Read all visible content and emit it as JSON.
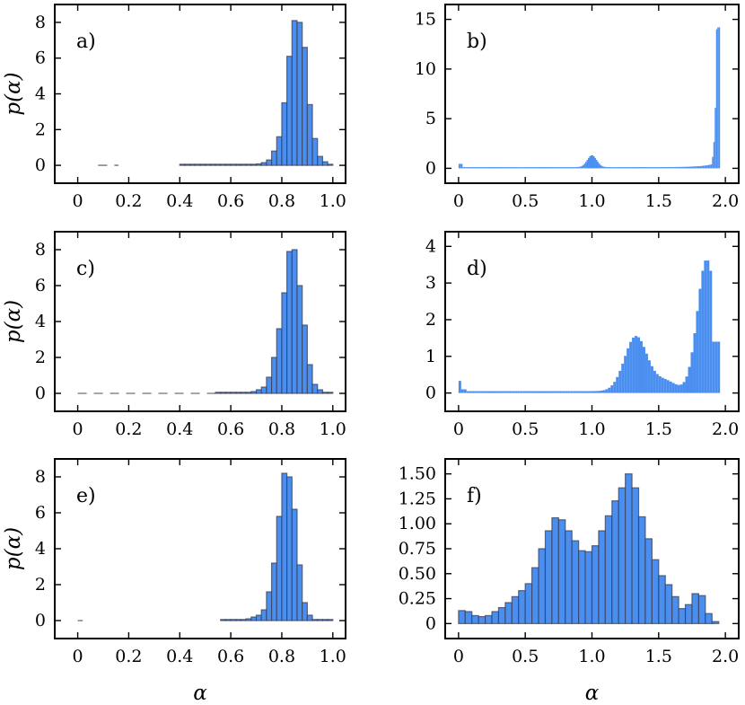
{
  "figure": {
    "ylabel": "p(α)",
    "xlabel": "α"
  },
  "colors": {
    "bar_fill": "#4a8ff0",
    "bar_edge": "#3a3f55",
    "frame": "#000000"
  },
  "chart_data": [
    {
      "type": "histogram",
      "panel_label": "a)",
      "xlim": [
        -0.09,
        1.05
      ],
      "ylim": [
        -1.0,
        9.0
      ],
      "xticks": [
        0,
        0.2,
        0.4,
        0.6,
        0.8,
        1.0
      ],
      "xtick_labels": [
        "0",
        "0.2",
        "0.4",
        "0.6",
        "0.8",
        "1.0"
      ],
      "yticks": [
        0,
        2,
        4,
        6,
        8
      ],
      "ytick_labels": [
        "0",
        "2",
        "4",
        "6",
        "8"
      ],
      "xlabel": "",
      "ylabel": "p(α)",
      "bin_start": 0.4,
      "bin_width": 0.02,
      "values": [
        0,
        0,
        0,
        0,
        0,
        0,
        0,
        0,
        0,
        0,
        0,
        0.01,
        0.02,
        0.03,
        0.05,
        0.08,
        0.15,
        0.3,
        0.8,
        1.6,
        3.5,
        6.1,
        8.1,
        8.0,
        6.6,
        3.4,
        1.5,
        0.5,
        0.2,
        0.05
      ],
      "sparse": [
        {
          "x": 0.08,
          "w": 0.08,
          "y": 0
        }
      ],
      "grid": false,
      "legend": "none"
    },
    {
      "type": "histogram",
      "panel_label": "b)",
      "xlim": [
        -0.1,
        2.1
      ],
      "ylim": [
        -1.5,
        16.5
      ],
      "xticks": [
        0,
        0.5,
        1.0,
        1.5,
        2.0
      ],
      "xtick_labels": [
        "0",
        "0.5",
        "1.0",
        "1.5",
        "2.0"
      ],
      "yticks": [
        0,
        5,
        10,
        15
      ],
      "ytick_labels": [
        "0",
        "5",
        "10",
        "15"
      ],
      "xlabel": "",
      "ylabel": "",
      "bin_start": 0.0,
      "bin_width": 0.01,
      "profile": "b",
      "grid": false,
      "legend": "none"
    },
    {
      "type": "histogram",
      "panel_label": "c)",
      "xlim": [
        -0.09,
        1.05
      ],
      "ylim": [
        -1.0,
        9.0
      ],
      "xticks": [
        0,
        0.2,
        0.4,
        0.6,
        0.8,
        1.0
      ],
      "xtick_labels": [
        "0",
        "0.2",
        "0.4",
        "0.6",
        "0.8",
        "1.0"
      ],
      "yticks": [
        0,
        2,
        4,
        6,
        8
      ],
      "ytick_labels": [
        "0",
        "2",
        "4",
        "6",
        "8"
      ],
      "xlabel": "",
      "ylabel": "p(α)",
      "bin_start": 0.54,
      "bin_width": 0.02,
      "values": [
        0,
        0,
        0,
        0,
        0.02,
        0.03,
        0.05,
        0.1,
        0.2,
        0.35,
        0.9,
        2.0,
        3.6,
        5.6,
        7.9,
        8.0,
        6.0,
        3.8,
        1.6,
        0.5,
        0.2,
        0.05,
        0.02
      ],
      "sparse": [
        {
          "x": 0.0,
          "w": 0.54,
          "y": 0
        }
      ],
      "grid": false,
      "legend": "none"
    },
    {
      "type": "histogram",
      "panel_label": "d)",
      "xlim": [
        -0.1,
        2.1
      ],
      "ylim": [
        -0.5,
        4.4
      ],
      "xticks": [
        0,
        0.5,
        1.0,
        1.5,
        2.0
      ],
      "xtick_labels": [
        "0",
        "0.5",
        "1.0",
        "1.5",
        "2.0"
      ],
      "yticks": [
        0,
        1,
        2,
        3,
        4
      ],
      "ytick_labels": [
        "0",
        "1",
        "2",
        "3",
        "4"
      ],
      "xlabel": "",
      "ylabel": "",
      "bin_start": 0.0,
      "bin_width": 0.02,
      "profile": "d",
      "grid": false,
      "legend": "none"
    },
    {
      "type": "histogram",
      "panel_label": "e)",
      "xlim": [
        -0.09,
        1.05
      ],
      "ylim": [
        -1.0,
        9.0
      ],
      "xticks": [
        0,
        0.2,
        0.4,
        0.6,
        0.8,
        1.0
      ],
      "xtick_labels": [
        "0",
        "0.2",
        "0.4",
        "0.6",
        "0.8",
        "1.0"
      ],
      "yticks": [
        0,
        2,
        4,
        6,
        8
      ],
      "ytick_labels": [
        "0",
        "2",
        "4",
        "6",
        "8"
      ],
      "xlabel": "α",
      "ylabel": "p(α)",
      "bin_start": 0.56,
      "bin_width": 0.02,
      "values": [
        0,
        0,
        0,
        0.02,
        0.05,
        0.1,
        0.2,
        0.3,
        0.6,
        1.6,
        3.2,
        5.8,
        8.2,
        8.0,
        6.2,
        3.1,
        1.0,
        0.3,
        0.05,
        0.02,
        0.01,
        0.01
      ],
      "sparse": [
        {
          "x": 0.0,
          "w": 0.02,
          "y": 0
        }
      ],
      "grid": false,
      "legend": "none"
    },
    {
      "type": "histogram",
      "panel_label": "f)",
      "xlim": [
        -0.1,
        2.1
      ],
      "ylim": [
        -0.15,
        1.65
      ],
      "xticks": [
        0,
        0.5,
        1.0,
        1.5,
        2.0
      ],
      "xtick_labels": [
        "0",
        "0.5",
        "1.0",
        "1.5",
        "2.0"
      ],
      "yticks": [
        0,
        0.25,
        0.5,
        0.75,
        1.0,
        1.25,
        1.5
      ],
      "ytick_labels": [
        "0",
        "0.25",
        "0.50",
        "0.75",
        "1.00",
        "1.25",
        "1.50"
      ],
      "xlabel": "α",
      "ylabel": "",
      "bin_start": 0.0,
      "bin_width": 0.05,
      "values": [
        0.13,
        0.12,
        0.08,
        0.07,
        0.08,
        0.12,
        0.16,
        0.21,
        0.27,
        0.33,
        0.4,
        0.56,
        0.75,
        0.93,
        1.06,
        1.04,
        0.93,
        0.83,
        0.73,
        0.72,
        0.78,
        0.93,
        1.08,
        1.23,
        1.36,
        1.5,
        1.36,
        1.07,
        0.85,
        0.64,
        0.48,
        0.39,
        0.27,
        0.15,
        0.19,
        0.3,
        0.28,
        0.1,
        0.02
      ],
      "grid": false,
      "legend": "none"
    }
  ]
}
